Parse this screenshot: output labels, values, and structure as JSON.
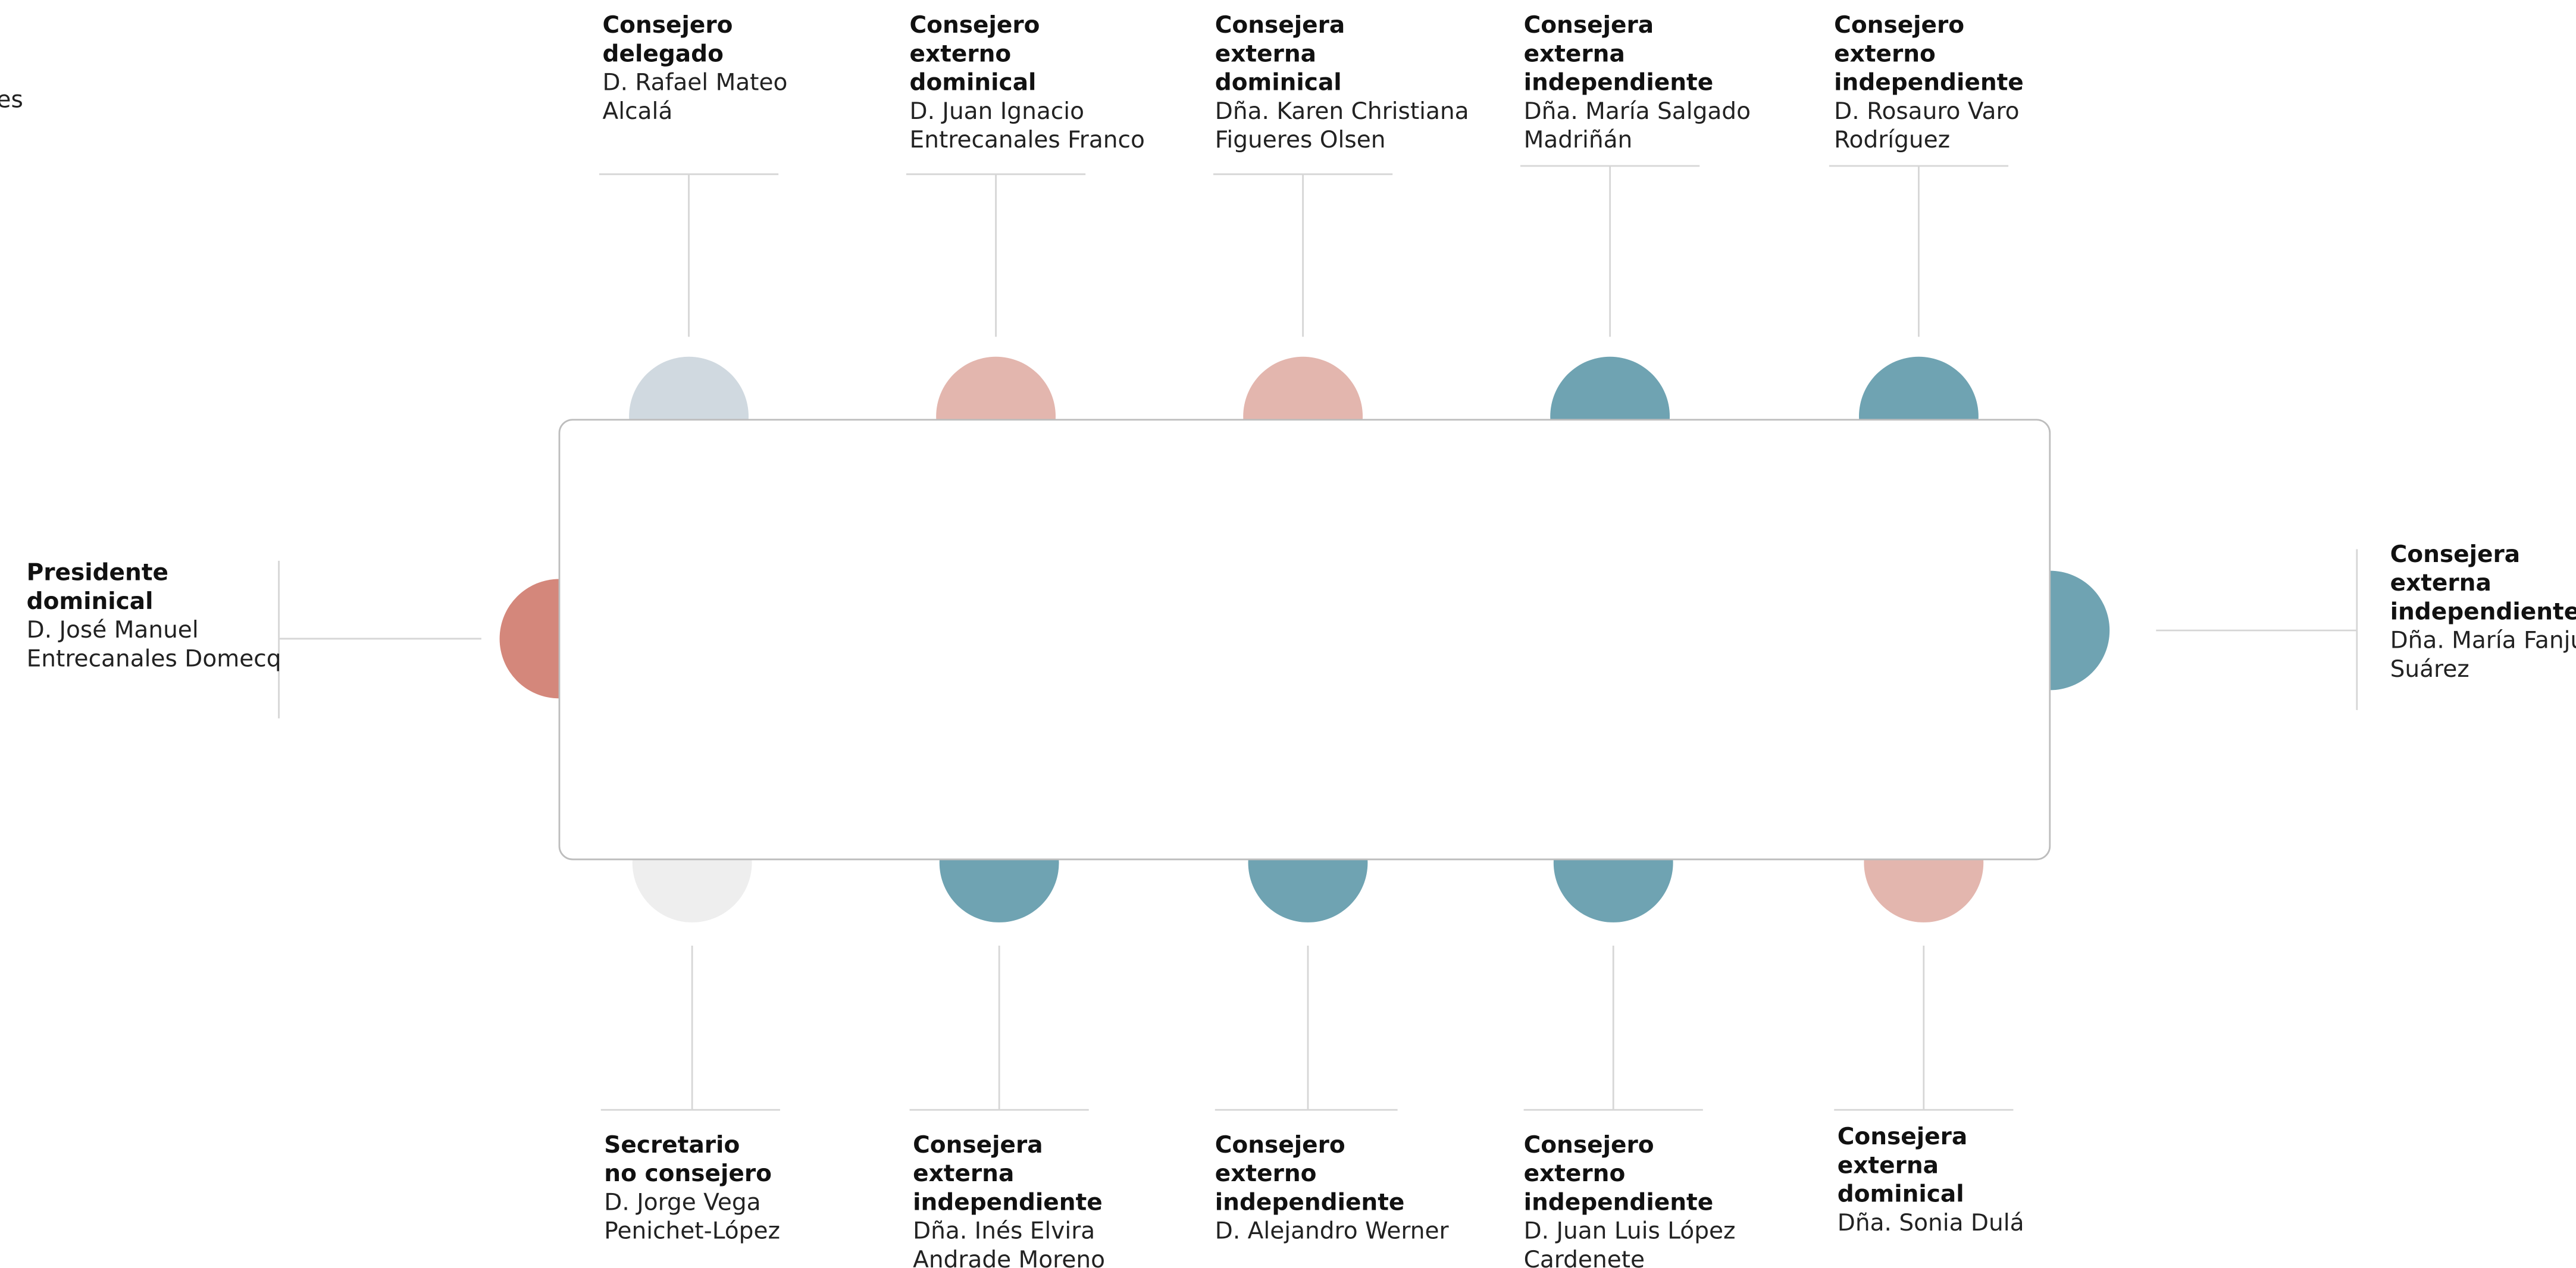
{
  "fragment": "es",
  "seats": [
    {
      "role_lines": [
        "Consejero",
        "delegado"
      ],
      "name_lines": [
        "D. Rafael Mateo",
        "Alcalá"
      ],
      "color": "#d0d9e0"
    },
    {
      "role_lines": [
        "Consejero",
        "externo",
        "dominical"
      ],
      "name_lines": [
        "D. Juan Ignacio",
        "Entrecanales Franco"
      ],
      "color": "#e3b6ae"
    },
    {
      "role_lines": [
        "Consejera",
        "externa",
        "dominical"
      ],
      "name_lines": [
        "Dña. Karen Christiana",
        "Figueres Olsen"
      ],
      "color": "#e3b6ae"
    },
    {
      "role_lines": [
        "Consejera",
        "externa",
        "independiente"
      ],
      "name_lines": [
        "Dña. María Salgado",
        "Madriñán"
      ],
      "color": "#6fa3b2"
    },
    {
      "role_lines": [
        "Consejero",
        "externo",
        "independiente"
      ],
      "name_lines": [
        "D. Rosauro Varo",
        "Rodríguez"
      ],
      "color": "#6fa3b2"
    },
    {
      "role_lines": [
        "Secretario",
        "no consejero"
      ],
      "name_lines": [
        "D. Jorge Vega",
        "Penichet-López"
      ],
      "color": "#eeeeee"
    },
    {
      "role_lines": [
        "Consejera",
        "externa",
        "independiente"
      ],
      "name_lines": [
        "Dña. Inés Elvira",
        "Andrade Moreno"
      ],
      "color": "#6fa3b2"
    },
    {
      "role_lines": [
        "Consejero",
        "externo",
        "independiente"
      ],
      "name_lines": [
        "D. Alejandro Werner"
      ],
      "color": "#6fa3b2"
    },
    {
      "role_lines": [
        "Consejero",
        "externo",
        "independiente"
      ],
      "name_lines": [
        "D. Juan Luis López",
        "Cardenete"
      ],
      "color": "#6fa3b2"
    },
    {
      "role_lines": [
        "Consejera",
        "externa",
        "dominical"
      ],
      "name_lines": [
        "Dña. Sonia Dulá"
      ],
      "color": "#e3b6ae"
    },
    {
      "role_lines": [
        "Presidente",
        "dominical"
      ],
      "name_lines": [
        "D. José Manuel",
        "Entrecanales Domecq"
      ],
      "color": "#d4877b"
    },
    {
      "role_lines": [
        "Consejera",
        "externa",
        "independiente"
      ],
      "name_lines": [
        "Dña. María Fanjul",
        "Suárez"
      ],
      "color": "#6fa3b2"
    }
  ]
}
